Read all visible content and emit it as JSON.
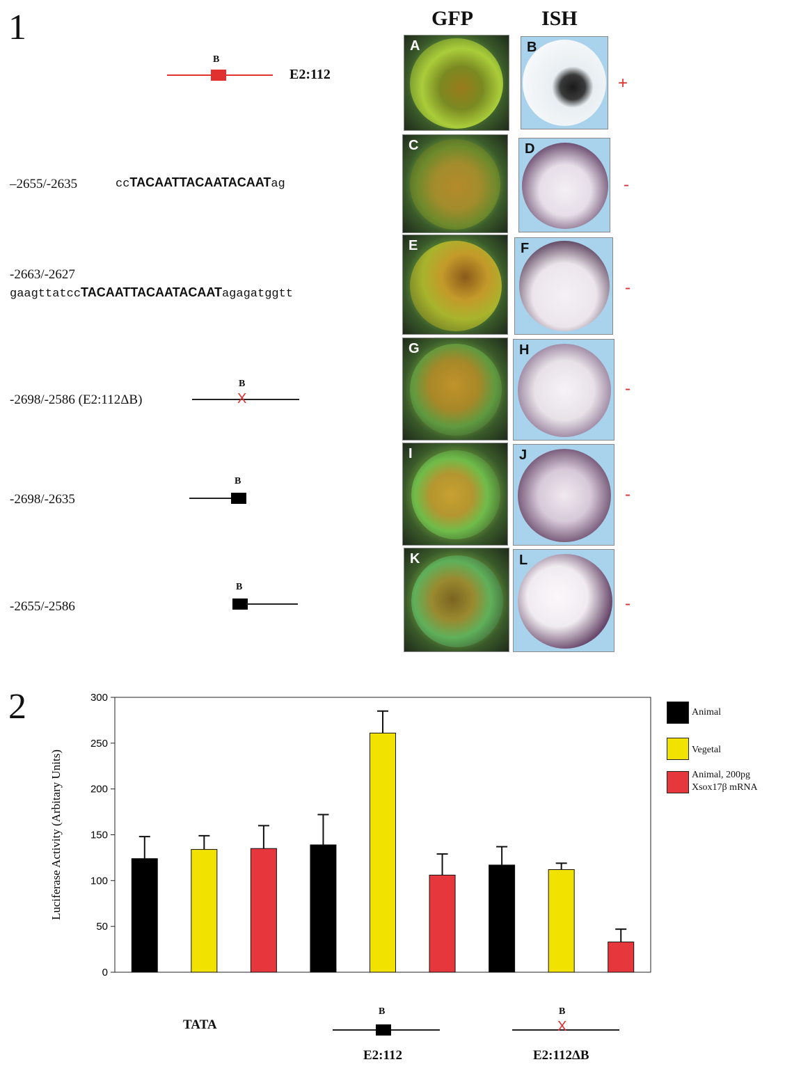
{
  "figure1": {
    "number": "1",
    "column_headers": [
      "GFP",
      "ISH"
    ],
    "rows": [
      {
        "label": "E2:112",
        "diagram": "red-box",
        "b_label": "B",
        "gfp_panel": "A",
        "ish_panel": "B",
        "result": "+"
      },
      {
        "label": "–2655/-2635",
        "seq_prefix": "cc",
        "seq_core": "TACAATTACAATACAAT",
        "seq_suffix": "ag",
        "gfp_panel": "C",
        "ish_panel": "D",
        "result": "-"
      },
      {
        "label": "-2663/-2627",
        "seq_prefix": "gaagttatcc",
        "seq_core": "TACAATTACAATACAAT",
        "seq_suffix": "agagatggtt",
        "gfp_panel": "E",
        "ish_panel": "F",
        "result": "-"
      },
      {
        "label": "-2698/-2586 (E2:112ΔB)",
        "diagram": "x-line",
        "b_label": "B",
        "gfp_panel": "G",
        "ish_panel": "H",
        "result": "-"
      },
      {
        "label": "-2698/-2635",
        "diagram": "line-box-right",
        "b_label": "B",
        "gfp_panel": "I",
        "ish_panel": "J",
        "result": "-"
      },
      {
        "label": "-2655/-2586",
        "diagram": "box-line-left",
        "b_label": "B",
        "gfp_panel": "K",
        "ish_panel": "L",
        "result": "-"
      }
    ],
    "x_mark": "X"
  },
  "figure2": {
    "number": "2"
  },
  "chart_data": {
    "type": "bar",
    "ylabel": "Luciferase Activity (Arbitary Units)",
    "ylim": [
      0,
      300
    ],
    "yticks": [
      0,
      50,
      100,
      150,
      200,
      250,
      300
    ],
    "groups": [
      "TATA",
      "E2:112",
      "E2:112ΔB"
    ],
    "group_b_label": "B",
    "group_x_mark": "X",
    "series": [
      {
        "name": "Animal",
        "color": "#000000",
        "values": [
          124,
          139,
          117
        ],
        "errors": [
          24,
          33,
          20
        ]
      },
      {
        "name": "Vegetal",
        "color": "#f2e200",
        "values": [
          134,
          261,
          112
        ],
        "errors": [
          15,
          24,
          7
        ]
      },
      {
        "name": "Animal, 200pg Xsox17β mRNA",
        "color": "#e6373c",
        "values": [
          135,
          106,
          33
        ],
        "errors": [
          25,
          23,
          14
        ]
      }
    ],
    "legend": [
      "Animal",
      "Vegetal",
      "Animal, 200pg",
      "Xsox17β mRNA"
    ]
  }
}
